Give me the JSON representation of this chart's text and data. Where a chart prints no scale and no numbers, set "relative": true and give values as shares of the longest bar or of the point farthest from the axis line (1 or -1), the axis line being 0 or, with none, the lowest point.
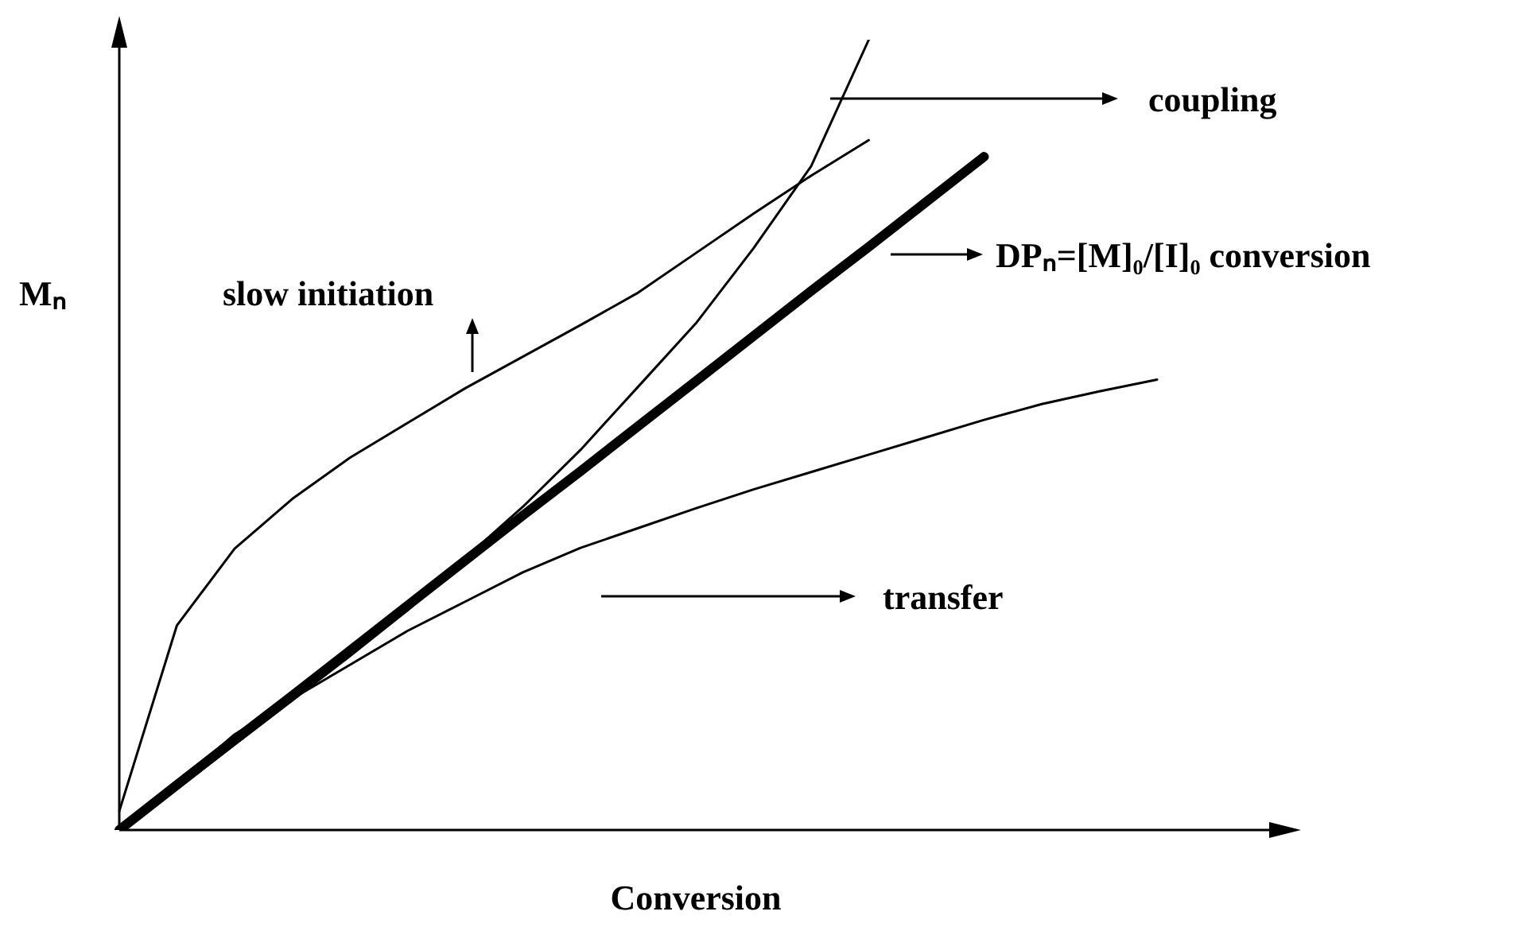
{
  "chart_data": {
    "type": "line",
    "relative": true,
    "xlabel": "Conversion",
    "ylabel": "Mₙ",
    "grid": false,
    "legend": "right",
    "marker": "none",
    "line_style": "solid",
    "categories": [
      null,
      null,
      null,
      null,
      null,
      null,
      null,
      null,
      null,
      null,
      null,
      null,
      null,
      null,
      null,
      null,
      null,
      null,
      null,
      null,
      null
    ],
    "series": [
      {
        "name": "DPₙ=[M]₀/[I]₀ conversion",
        "color": "#000000",
        "values": [
          0,
          0.057,
          0.114,
          0.17,
          0.227,
          0.284,
          0.341,
          0.398,
          0.454,
          0.511,
          0.568,
          0.625,
          0.682,
          0.738,
          0.795,
          0.852,
          null,
          null,
          null,
          null,
          null
        ]
      },
      {
        "name": "slow initiation",
        "color": "#000000",
        "values": [
          0.024,
          0.259,
          0.356,
          0.419,
          0.471,
          0.515,
          0.559,
          0.599,
          0.639,
          0.68,
          0.73,
          0.78,
          0.828,
          0.873,
          null,
          null,
          null,
          null,
          null,
          null,
          null
        ]
      },
      {
        "name": "coupling",
        "color": "#000000",
        "values": [
          0,
          0.052,
          0.108,
          0.164,
          0.22,
          0.278,
          0.344,
          0.409,
          0.481,
          0.561,
          0.641,
          0.736,
          0.84,
          1,
          null,
          null,
          null,
          null,
          null,
          null,
          null
        ]
      },
      {
        "name": "transfer",
        "color": "#000000",
        "values": [
          0,
          0.058,
          0.121,
          0.166,
          0.209,
          0.252,
          0.289,
          0.326,
          0.357,
          0.382,
          0.407,
          0.431,
          0.453,
          0.475,
          0.497,
          0.519,
          0.539,
          0.555,
          0.57,
          null,
          null
        ]
      }
    ]
  }
}
